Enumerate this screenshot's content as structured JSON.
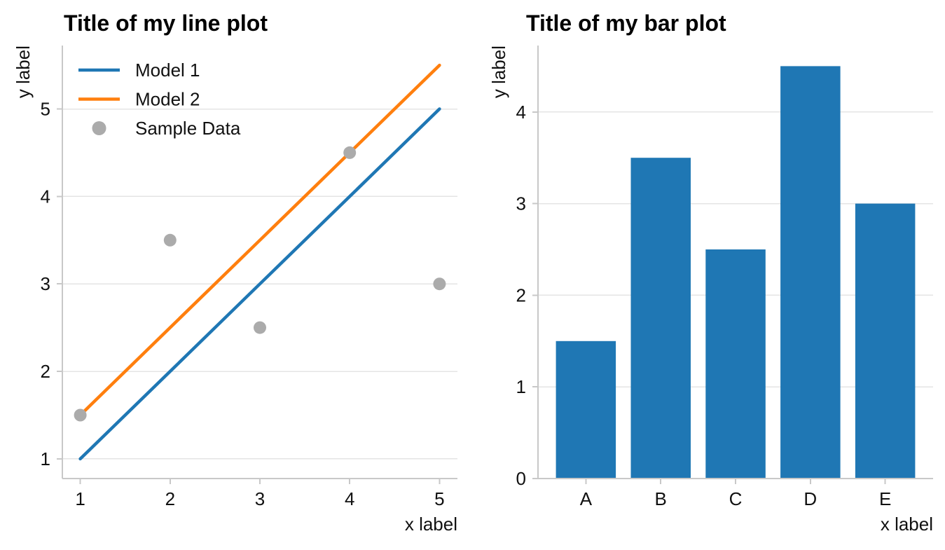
{
  "figure": {
    "background": "#ffffff",
    "text_color": "#111111",
    "grid_color": "#e4e4e4",
    "spine_color": "#c8c8c8"
  },
  "chart_data": [
    {
      "type": "line",
      "title": "Title of my line plot",
      "xlabel": "x label",
      "ylabel": "y label",
      "x": [
        1,
        2,
        3,
        4,
        5
      ],
      "series": [
        {
          "name": "Model 1",
          "kind": "line",
          "color": "#1f77b4",
          "values": [
            1,
            2,
            3,
            4,
            5
          ]
        },
        {
          "name": "Model 2",
          "kind": "line",
          "color": "#ff7f0e",
          "values": [
            1.5,
            2.5,
            3.5,
            4.5,
            5.5
          ]
        },
        {
          "name": "Sample Data",
          "kind": "scatter",
          "color": "#ababab",
          "values": [
            1.5,
            3.5,
            2.5,
            4.5,
            3
          ]
        }
      ],
      "xticks": [
        1,
        2,
        3,
        4,
        5
      ],
      "yticks": [
        1,
        2,
        3,
        4,
        5
      ],
      "xlim": [
        0.8,
        5.2
      ],
      "ylim": [
        0.775,
        5.725
      ],
      "grid": "horizontal",
      "legend_position": "upper left",
      "legend_frame": false
    },
    {
      "type": "bar",
      "title": "Title of my bar plot",
      "xlabel": "x label",
      "ylabel": "y label",
      "categories": [
        "A",
        "B",
        "C",
        "D",
        "E"
      ],
      "values": [
        1.5,
        3.5,
        2.5,
        4.5,
        3
      ],
      "bar_color": "#1f77b4",
      "bar_width": 0.8,
      "yticks": [
        0,
        1,
        2,
        3,
        4
      ],
      "xlim": [
        -0.64,
        4.64
      ],
      "ylim": [
        0,
        4.725
      ],
      "grid": "horizontal"
    }
  ]
}
